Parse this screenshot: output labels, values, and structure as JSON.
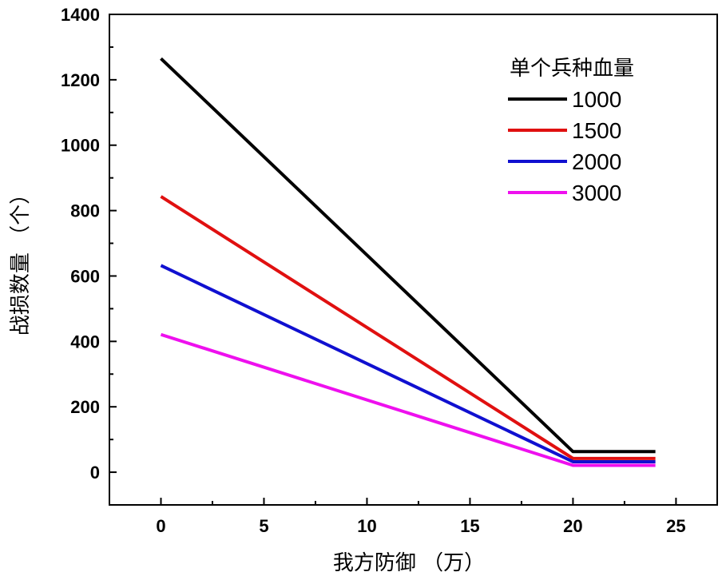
{
  "chart_data": {
    "type": "line",
    "xlabel": "我方防御 （万）",
    "ylabel": "战损数量 （个）",
    "xlim": [
      -2.5,
      27
    ],
    "ylim": [
      -100,
      1400
    ],
    "xticks": [
      0,
      5,
      10,
      15,
      20,
      25
    ],
    "yticks": [
      0,
      200,
      400,
      600,
      800,
      1000,
      1200,
      1400
    ],
    "grid": false,
    "legend": {
      "title": "单个兵种血量",
      "placement": "top-right"
    },
    "series": [
      {
        "name": "1000",
        "color": "#000000",
        "x": [
          0,
          20,
          24
        ],
        "y": [
          1265,
          63,
          63
        ]
      },
      {
        "name": "1500",
        "color": "#e01010",
        "x": [
          0,
          20,
          24
        ],
        "y": [
          843,
          42,
          42
        ]
      },
      {
        "name": "2000",
        "color": "#1010d0",
        "x": [
          0,
          20,
          24
        ],
        "y": [
          632,
          32,
          32
        ]
      },
      {
        "name": "3000",
        "color": "#ee10ee",
        "x": [
          0,
          20,
          24
        ],
        "y": [
          421,
          21,
          21
        ]
      }
    ]
  }
}
